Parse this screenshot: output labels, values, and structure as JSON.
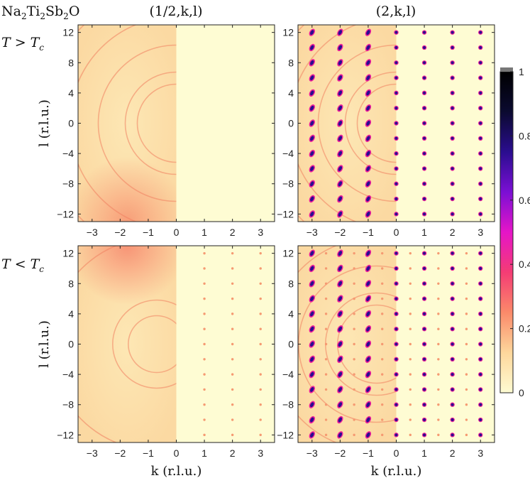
{
  "figure": {
    "compound_label": "Na₂Ti₂Sb₂O",
    "row_labels": [
      {
        "var": "T",
        "op": ">",
        "sub": "c"
      },
      {
        "var": "T",
        "op": "<",
        "sub": "c"
      }
    ],
    "column_titles": [
      "(1/2,k,l)",
      "(2,k,l)"
    ],
    "xlabel": "k (r.l.u.)",
    "ylabel": "l (r.l.u.)"
  },
  "colorbar": {
    "ticks": [
      "0",
      "0.2",
      "0.4",
      "0.6",
      "0.8",
      "1"
    ],
    "colors": [
      "#fdfbd2",
      "#fdd79c",
      "#fb8a6a",
      "#f43c74",
      "#e615c8",
      "#7b0fd4",
      "#2a0d8f",
      "#0b0a30",
      "#000000"
    ]
  },
  "chart_data": [
    {
      "type": "heatmap",
      "panel": "T > Tc, (1/2,k,l)",
      "xlim": [
        -3.5,
        3.5
      ],
      "ylim": [
        -13,
        13
      ],
      "xticks": [
        -3,
        -2,
        -1,
        0,
        1,
        2,
        3
      ],
      "yticks": [
        12,
        8,
        4,
        0,
        -4,
        -8,
        -12
      ],
      "peaks": []
    },
    {
      "type": "heatmap",
      "panel": "T > Tc, (2,k,l)",
      "xlim": [
        -3.5,
        3.5
      ],
      "ylim": [
        -13,
        13
      ],
      "xticks": [
        -3,
        -2,
        -1,
        0,
        1,
        2,
        3
      ],
      "yticks": [
        12,
        8,
        4,
        0,
        -4,
        -8,
        -12
      ],
      "peaks": [
        {
          "k": [
            -3,
            -2,
            -1,
            0,
            1,
            2,
            3
          ],
          "l": [
            -12,
            -10,
            -8,
            -6,
            -4,
            -2,
            0,
            2,
            4,
            6,
            8,
            10,
            12
          ],
          "intensity": 0.8
        }
      ]
    },
    {
      "type": "heatmap",
      "panel": "T < Tc, (1/2,k,l)",
      "xlim": [
        -3.5,
        3.5
      ],
      "ylim": [
        -13,
        13
      ],
      "xticks": [
        -3,
        -2,
        -1,
        0,
        1,
        2,
        3
      ],
      "yticks": [
        12,
        8,
        4,
        0,
        -4,
        -8,
        -12
      ],
      "peaks": [
        {
          "k": [
            1,
            2,
            3
          ],
          "l": [
            -12,
            -10,
            -8,
            -6,
            -4,
            -2,
            0,
            2,
            4,
            6,
            8,
            10,
            12
          ],
          "intensity": 0.25
        }
      ]
    },
    {
      "type": "heatmap",
      "panel": "T < Tc, (2,k,l)",
      "xlim": [
        -3.5,
        3.5
      ],
      "ylim": [
        -13,
        13
      ],
      "xticks": [
        -3,
        -2,
        -1,
        0,
        1,
        2,
        3
      ],
      "yticks": [
        12,
        8,
        4,
        0,
        -4,
        -8,
        -12
      ],
      "peaks": [
        {
          "k": [
            -3,
            -2,
            -1,
            0,
            1,
            2,
            3
          ],
          "l": [
            -12,
            -10,
            -8,
            -6,
            -4,
            -2,
            0,
            2,
            4,
            6,
            8,
            10,
            12
          ],
          "intensity": 0.8
        },
        {
          "k": [
            -2.5,
            -1.5,
            -0.5,
            0.5,
            1.5,
            2.5
          ],
          "l": [
            -12,
            -10,
            -8,
            -6,
            -4,
            -2,
            0,
            2,
            4,
            6,
            8,
            10,
            12
          ],
          "intensity": 0.25
        }
      ]
    }
  ]
}
